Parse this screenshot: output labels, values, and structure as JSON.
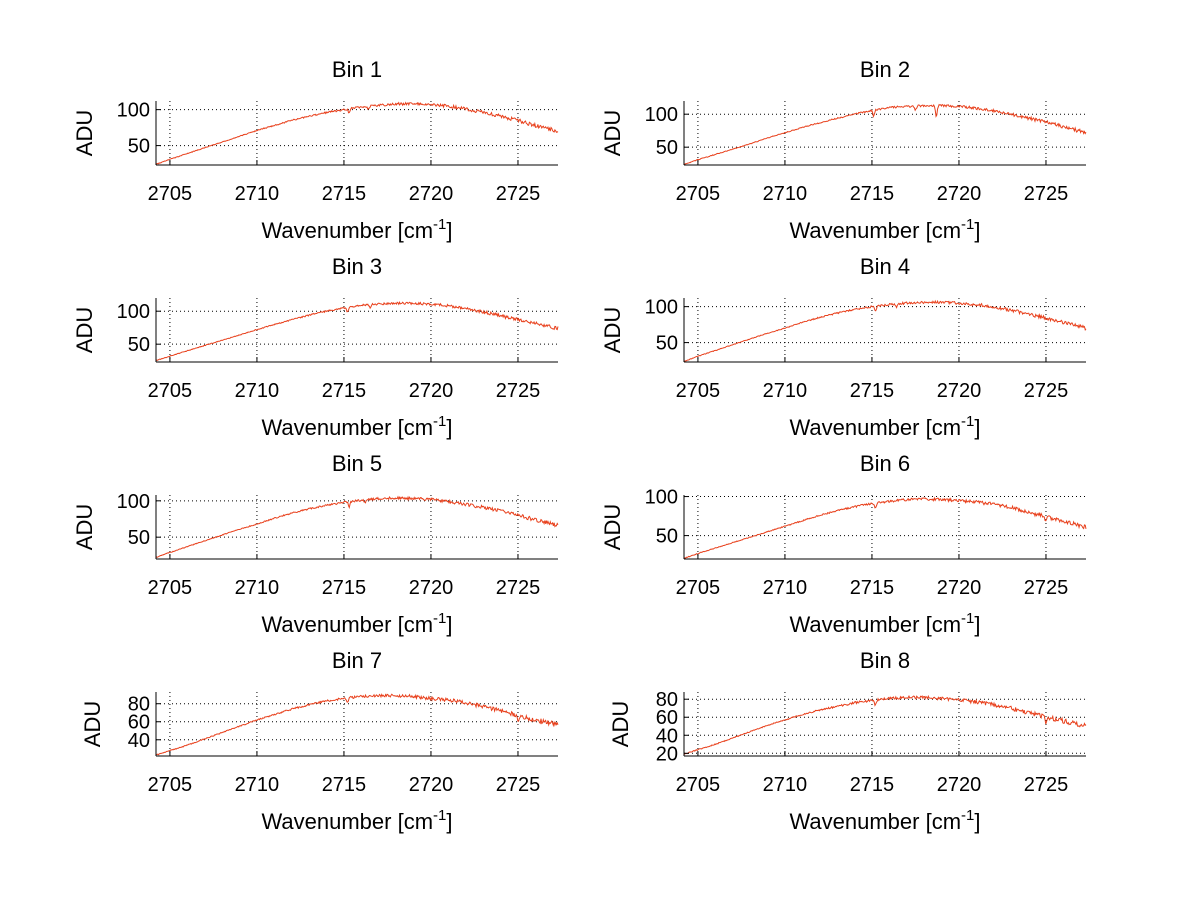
{
  "figure": {
    "background": "#ffffff",
    "line_color": "#e8401c",
    "grid": "dotted"
  },
  "chart_data": [
    {
      "type": "line",
      "title": "Bin 1",
      "xlabel_main": "Wavenumber [cm",
      "xlabel_sup": "-1",
      "xlabel_close": "]",
      "ylabel": "ADU",
      "xlim": [
        2704.2,
        2727.3
      ],
      "ylim": [
        23,
        112
      ],
      "xticks": [
        2705,
        2710,
        2715,
        2720,
        2725
      ],
      "yticks": [
        50,
        100
      ],
      "grid": true,
      "series": [
        {
          "x": [
            2704.2,
            2705,
            2706,
            2707,
            2708,
            2709,
            2710,
            2711,
            2712,
            2713,
            2714,
            2715,
            2716,
            2717,
            2718,
            2719,
            2720,
            2721,
            2722,
            2723,
            2724,
            2725,
            2726,
            2727.3
          ],
          "y": [
            24,
            31,
            39,
            47,
            55,
            63,
            71,
            78,
            85,
            91,
            96,
            100,
            104,
            106,
            108,
            108,
            107,
            105,
            101,
            96,
            91,
            85,
            78,
            70
          ],
          "dips": [
            [
              2715.3,
              6
            ],
            [
              2716.4,
              4
            ]
          ]
        }
      ]
    },
    {
      "type": "line",
      "title": "Bin 2",
      "xlabel_main": "Wavenumber [cm",
      "xlabel_sup": "-1",
      "xlabel_close": "]",
      "ylabel": "ADU",
      "xlim": [
        2704.2,
        2727.3
      ],
      "ylim": [
        23,
        120
      ],
      "xticks": [
        2705,
        2710,
        2715,
        2720,
        2725
      ],
      "yticks": [
        50,
        100
      ],
      "grid": true,
      "series": [
        {
          "x": [
            2704.2,
            2705,
            2706,
            2707,
            2708,
            2709,
            2710,
            2711,
            2712,
            2713,
            2714,
            2715,
            2716,
            2717,
            2718,
            2719,
            2720,
            2721,
            2722,
            2723,
            2724,
            2725,
            2726,
            2727.3
          ],
          "y": [
            24,
            31,
            39,
            47,
            55,
            64,
            72,
            80,
            87,
            94,
            100,
            106,
            110,
            112,
            113,
            113,
            112,
            109,
            105,
            100,
            94,
            88,
            81,
            72
          ],
          "dips": [
            [
              2715.1,
              10
            ],
            [
              2718.7,
              18
            ],
            [
              2717.5,
              7
            ]
          ]
        }
      ]
    },
    {
      "type": "line",
      "title": "Bin 3",
      "xlabel_main": "Wavenumber [cm",
      "xlabel_sup": "-1",
      "xlabel_close": "]",
      "ylabel": "ADU",
      "xlim": [
        2704.2,
        2727.3
      ],
      "ylim": [
        23,
        120
      ],
      "xticks": [
        2705,
        2710,
        2715,
        2720,
        2725
      ],
      "yticks": [
        50,
        100
      ],
      "grid": true,
      "series": [
        {
          "x": [
            2704.2,
            2705,
            2706,
            2707,
            2708,
            2709,
            2710,
            2711,
            2712,
            2713,
            2714,
            2715,
            2716,
            2717,
            2718,
            2719,
            2720,
            2721,
            2722,
            2723,
            2724,
            2725,
            2726,
            2727.3
          ],
          "y": [
            25,
            32,
            40,
            48,
            56,
            64,
            72,
            80,
            87,
            94,
            100,
            105,
            109,
            111,
            112,
            112,
            111,
            108,
            104,
            99,
            93,
            87,
            81,
            74
          ],
          "dips": [
            [
              2715.2,
              8
            ],
            [
              2716.5,
              4
            ]
          ]
        }
      ]
    },
    {
      "type": "line",
      "title": "Bin 4",
      "xlabel_main": "Wavenumber [cm",
      "xlabel_sup": "-1",
      "xlabel_close": "]",
      "ylabel": "ADU",
      "xlim": [
        2704.2,
        2727.3
      ],
      "ylim": [
        23,
        112
      ],
      "xticks": [
        2705,
        2710,
        2715,
        2720,
        2725
      ],
      "yticks": [
        50,
        100
      ],
      "grid": true,
      "series": [
        {
          "x": [
            2704.2,
            2705,
            2706,
            2707,
            2708,
            2709,
            2710,
            2711,
            2712,
            2713,
            2714,
            2715,
            2716,
            2717,
            2718,
            2719,
            2720,
            2721,
            2722,
            2723,
            2724,
            2725,
            2726,
            2727.3
          ],
          "y": [
            24,
            31,
            39,
            47,
            55,
            63,
            70,
            78,
            85,
            91,
            96,
            100,
            103,
            105,
            106,
            106,
            105,
            103,
            100,
            95,
            90,
            84,
            78,
            70
          ],
          "dips": [
            [
              2715.2,
              8
            ],
            [
              2716.4,
              4
            ]
          ]
        }
      ]
    },
    {
      "type": "line",
      "title": "Bin 5",
      "xlabel_main": "Wavenumber [cm",
      "xlabel_sup": "-1",
      "xlabel_close": "]",
      "ylabel": "ADU",
      "xlim": [
        2704.2,
        2727.3
      ],
      "ylim": [
        20,
        108
      ],
      "xticks": [
        2705,
        2710,
        2715,
        2720,
        2725
      ],
      "yticks": [
        50,
        100
      ],
      "grid": true,
      "series": [
        {
          "x": [
            2704.2,
            2705,
            2706,
            2707,
            2708,
            2709,
            2710,
            2711,
            2712,
            2713,
            2714,
            2715,
            2716,
            2717,
            2718,
            2719,
            2720,
            2721,
            2722,
            2723,
            2724,
            2725,
            2726,
            2727.3
          ],
          "y": [
            22,
            29,
            37,
            45,
            53,
            61,
            68,
            76,
            83,
            89,
            94,
            98,
            101,
            103,
            104,
            103,
            102,
            99,
            95,
            91,
            86,
            80,
            74,
            66
          ],
          "dips": [
            [
              2715.3,
              7
            ],
            [
              2716.2,
              4
            ]
          ]
        }
      ]
    },
    {
      "type": "line",
      "title": "Bin 6",
      "xlabel_main": "Wavenumber [cm",
      "xlabel_sup": "-1",
      "xlabel_close": "]",
      "ylabel": "ADU",
      "xlim": [
        2704.2,
        2727.3
      ],
      "ylim": [
        20,
        102
      ],
      "xticks": [
        2705,
        2710,
        2715,
        2720,
        2725
      ],
      "yticks": [
        50,
        100
      ],
      "grid": true,
      "series": [
        {
          "x": [
            2704.2,
            2705,
            2706,
            2707,
            2708,
            2709,
            2710,
            2711,
            2712,
            2713,
            2714,
            2715,
            2716,
            2717,
            2718,
            2719,
            2720,
            2721,
            2722,
            2723,
            2724,
            2725,
            2726,
            2727.3
          ],
          "y": [
            21,
            27,
            34,
            41,
            48,
            55,
            62,
            69,
            76,
            82,
            87,
            91,
            94,
            96,
            97,
            96,
            95,
            93,
            90,
            86,
            80,
            74,
            68,
            61
          ],
          "dips": [
            [
              2715.2,
              7
            ],
            [
              2725.0,
              6
            ]
          ]
        }
      ]
    },
    {
      "type": "line",
      "title": "Bin 7",
      "xlabel_main": "Wavenumber [cm",
      "xlabel_sup": "-1",
      "xlabel_close": "]",
      "ylabel": "ADU",
      "xlim": [
        2704.2,
        2727.3
      ],
      "ylim": [
        22,
        93
      ],
      "xticks": [
        2705,
        2710,
        2715,
        2720,
        2725
      ],
      "yticks": [
        40,
        60,
        80
      ],
      "grid": true,
      "series": [
        {
          "x": [
            2704.2,
            2705,
            2706,
            2707,
            2708,
            2709,
            2710,
            2711,
            2712,
            2713,
            2714,
            2715,
            2716,
            2717,
            2718,
            2719,
            2720,
            2721,
            2722,
            2723,
            2724,
            2725,
            2726,
            2727.3
          ],
          "y": [
            23,
            28,
            34,
            41,
            48,
            55,
            62,
            68,
            74,
            79,
            83,
            86,
            88,
            89,
            89,
            88,
            86,
            84,
            81,
            77,
            72,
            67,
            62,
            57
          ],
          "dips": [
            [
              2715.2,
              6
            ],
            [
              2725.0,
              6
            ]
          ]
        }
      ]
    },
    {
      "type": "line",
      "title": "Bin 8",
      "xlabel_main": "Wavenumber [cm",
      "xlabel_sup": "-1",
      "xlabel_close": "]",
      "ylabel": "ADU",
      "xlim": [
        2704.2,
        2727.3
      ],
      "ylim": [
        17,
        88
      ],
      "xticks": [
        2705,
        2710,
        2715,
        2720,
        2725
      ],
      "yticks": [
        20,
        40,
        60,
        80
      ],
      "grid": true,
      "series": [
        {
          "x": [
            2704.2,
            2705,
            2706,
            2707,
            2708,
            2709,
            2710,
            2711,
            2712,
            2713,
            2714,
            2715,
            2716,
            2717,
            2718,
            2719,
            2720,
            2721,
            2722,
            2723,
            2724,
            2725,
            2726,
            2727.3
          ],
          "y": [
            19,
            24,
            30,
            37,
            44,
            51,
            57,
            63,
            68,
            72,
            76,
            79,
            81,
            82,
            82,
            81,
            79,
            77,
            74,
            70,
            65,
            60,
            56,
            50
          ],
          "dips": [
            [
              2715.2,
              6
            ],
            [
              2725.0,
              6
            ]
          ]
        }
      ]
    }
  ]
}
